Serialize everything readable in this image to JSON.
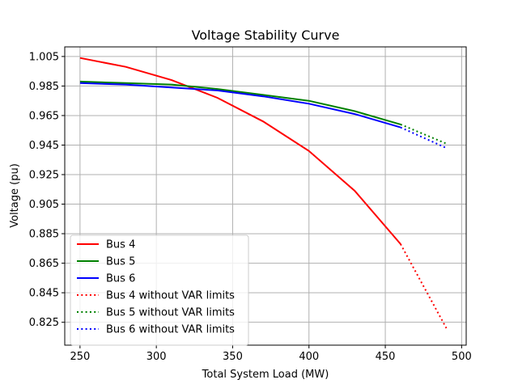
{
  "chart_data": {
    "type": "line",
    "title": "Voltage Stability Curve",
    "xlabel": "Total System Load (MW)",
    "ylabel": "Voltage (pu)",
    "xlim": [
      240,
      503
    ],
    "ylim": [
      0.8095,
      1.0115
    ],
    "xticks": [
      250,
      300,
      350,
      400,
      450,
      500
    ],
    "yticks": [
      1.005,
      0.985,
      0.965,
      0.945,
      0.925,
      0.905,
      0.885,
      0.865,
      0.845,
      0.825
    ],
    "ytick_labels": [
      "1.005",
      "0.985",
      "0.965",
      "0.945",
      "0.925",
      "0.905",
      "0.885",
      "0.865",
      "0.845",
      "0.825"
    ],
    "grid": true,
    "legend_position": "lower-left",
    "series": [
      {
        "name": "Bus 4",
        "color": "#ff0000",
        "style": "solid",
        "x": [
          250,
          280,
          310,
          340,
          370,
          400,
          430,
          460
        ],
        "y": [
          1.004,
          0.998,
          0.989,
          0.977,
          0.961,
          0.941,
          0.914,
          0.878
        ]
      },
      {
        "name": "Bus 5",
        "color": "#008000",
        "style": "solid",
        "x": [
          250,
          280,
          310,
          340,
          370,
          400,
          430,
          460
        ],
        "y": [
          0.988,
          0.987,
          0.986,
          0.983,
          0.979,
          0.975,
          0.968,
          0.959
        ]
      },
      {
        "name": "Bus 6",
        "color": "#0000ff",
        "style": "solid",
        "x": [
          250,
          280,
          310,
          340,
          370,
          400,
          430,
          460
        ],
        "y": [
          0.987,
          0.986,
          0.984,
          0.982,
          0.978,
          0.973,
          0.966,
          0.957
        ]
      },
      {
        "name": "Bus 4 without VAR limits",
        "color": "#ff0000",
        "style": "dotted",
        "x": [
          460,
          490
        ],
        "y": [
          0.878,
          0.821
        ]
      },
      {
        "name": "Bus 5 without VAR limits",
        "color": "#008000",
        "style": "dotted",
        "x": [
          460,
          490
        ],
        "y": [
          0.959,
          0.946
        ]
      },
      {
        "name": "Bus 6 without VAR limits",
        "color": "#0000ff",
        "style": "dotted",
        "x": [
          460,
          490
        ],
        "y": [
          0.957,
          0.943
        ]
      }
    ]
  }
}
